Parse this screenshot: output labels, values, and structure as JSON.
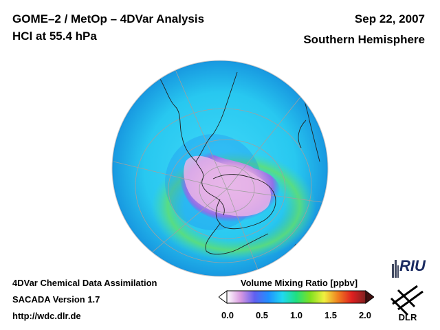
{
  "header": {
    "title_line1": "GOME–2 / MetOp – 4DVar Analysis",
    "title_line2": "HCl at 55.4 hPa",
    "date": "Sep 22, 2007",
    "region": "Southern Hemisphere"
  },
  "footer": {
    "line1": "4DVar Chemical Data Assimilation",
    "line2": "SACADA Version 1.7",
    "line3": "http://wdc.dlr.de"
  },
  "colorbar": {
    "title": "Volume Mixing Ratio [ppbv]",
    "min": 0.0,
    "max": 2.0,
    "ticks": [
      "0.0",
      "0.5",
      "1.0",
      "1.5",
      "2.0"
    ],
    "colors": [
      "#ffffff",
      "#d898e0",
      "#6060f0",
      "#2090ff",
      "#20d8f0",
      "#20e080",
      "#80e020",
      "#f0f040",
      "#f08020",
      "#e02020",
      "#802020"
    ]
  },
  "logos": {
    "riu_text": "RIU",
    "dlr_text": "DLR",
    "riu_icon": "riu-logo-icon",
    "dlr_icon": "dlr-logo-icon"
  },
  "map": {
    "projection": "orthographic",
    "background_color": "#30c8f0",
    "lowest_value_color": "#e8b8e8"
  }
}
